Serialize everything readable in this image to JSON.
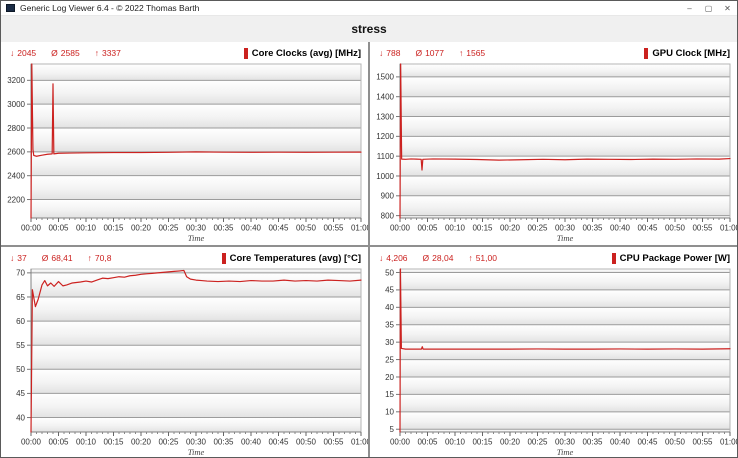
{
  "window": {
    "title": "Generic Log Viewer 6.4 - © 2022 Thomas Barth",
    "controls": {
      "minimize": "–",
      "maximize": "▢",
      "close": "✕"
    }
  },
  "header": {
    "title": "stress"
  },
  "stats_symbols": {
    "min": "↓",
    "avg": "Ø",
    "max": "↑"
  },
  "colors": {
    "accent_red": "#cb211f",
    "line_red": "#cc2220",
    "grid_line": "#9b9b9b",
    "band_top": "#ffffff",
    "band_bottom": "#e2e2e2",
    "axis_text": "#333333",
    "plot_border": "#b5b5b5"
  },
  "chart_data": [
    {
      "type": "line",
      "title": "Core Clocks (avg) [MHz]",
      "stats": {
        "min": "2045",
        "avg": "2585",
        "max": "3337"
      },
      "xlabel": "Time",
      "x_tick_labels": [
        "00:00",
        "00:05",
        "00:10",
        "00:15",
        "00:20",
        "00:25",
        "00:30",
        "00:35",
        "00:40",
        "00:45",
        "00:50",
        "00:55",
        "01:00"
      ],
      "xlim_minutes": [
        0,
        60
      ],
      "x_major_step": 5,
      "x_minor_step": 1,
      "y_ticks": [
        2200,
        2400,
        2600,
        2800,
        3000,
        3200
      ],
      "ylim": [
        2045,
        3337
      ],
      "series": [
        {
          "points": [
            [
              0,
              2045
            ],
            [
              0.15,
              3337
            ],
            [
              0.35,
              2620
            ],
            [
              0.5,
              2570
            ],
            [
              1,
              2563
            ],
            [
              2,
              2572
            ],
            [
              3,
              2580
            ],
            [
              3.85,
              2583
            ],
            [
              4,
              3170
            ],
            [
              4.15,
              2583
            ],
            [
              5,
              2588
            ],
            [
              7,
              2590
            ],
            [
              10,
              2592
            ],
            [
              15,
              2594
            ],
            [
              20,
              2594
            ],
            [
              25,
              2596
            ],
            [
              30,
              2600
            ],
            [
              35,
              2597
            ],
            [
              40,
              2596
            ],
            [
              45,
              2597
            ],
            [
              50,
              2596
            ],
            [
              55,
              2597
            ],
            [
              60,
              2598
            ]
          ]
        }
      ]
    },
    {
      "type": "line",
      "title": "GPU Clock [MHz]",
      "stats": {
        "min": "788",
        "avg": "1077",
        "max": "1565"
      },
      "xlabel": "Time",
      "x_tick_labels": [
        "00:00",
        "00:05",
        "00:10",
        "00:15",
        "00:20",
        "00:25",
        "00:30",
        "00:35",
        "00:40",
        "00:45",
        "00:50",
        "00:55",
        "01:00"
      ],
      "xlim_minutes": [
        0,
        60
      ],
      "x_major_step": 5,
      "x_minor_step": 1,
      "y_ticks": [
        800,
        900,
        1000,
        1100,
        1200,
        1300,
        1400,
        1500
      ],
      "ylim": [
        788,
        1565
      ],
      "series": [
        {
          "points": [
            [
              0,
              788
            ],
            [
              0.12,
              1565
            ],
            [
              0.3,
              1085
            ],
            [
              1,
              1084
            ],
            [
              2,
              1086
            ],
            [
              3,
              1085
            ],
            [
              3.85,
              1084
            ],
            [
              4,
              1030
            ],
            [
              4.15,
              1084
            ],
            [
              6,
              1086
            ],
            [
              10,
              1085
            ],
            [
              14,
              1083
            ],
            [
              18,
              1080
            ],
            [
              22,
              1082
            ],
            [
              26,
              1084
            ],
            [
              30,
              1082
            ],
            [
              34,
              1085
            ],
            [
              38,
              1084
            ],
            [
              42,
              1083
            ],
            [
              46,
              1085
            ],
            [
              50,
              1084
            ],
            [
              54,
              1086
            ],
            [
              58,
              1085
            ],
            [
              60,
              1088
            ]
          ]
        }
      ]
    },
    {
      "type": "line",
      "title": "Core Temperatures (avg) [°C]",
      "stats": {
        "min": "37",
        "avg": "68,41",
        "max": "70,8"
      },
      "xlabel": "Time",
      "x_tick_labels": [
        "00:00",
        "00:05",
        "00:10",
        "00:15",
        "00:20",
        "00:25",
        "00:30",
        "00:35",
        "00:40",
        "00:45",
        "00:50",
        "00:55",
        "01:00"
      ],
      "xlim_minutes": [
        0,
        60
      ],
      "x_major_step": 5,
      "x_minor_step": 1,
      "y_ticks": [
        40,
        45,
        50,
        55,
        60,
        65,
        70
      ],
      "ylim": [
        37,
        70.8
      ],
      "series": [
        {
          "points": [
            [
              0,
              37
            ],
            [
              0.25,
              66.5
            ],
            [
              0.8,
              63
            ],
            [
              1.3,
              64.5
            ],
            [
              2,
              67.5
            ],
            [
              2.5,
              68.4
            ],
            [
              3,
              67.3
            ],
            [
              3.6,
              67.9
            ],
            [
              4.2,
              67.2
            ],
            [
              5,
              68.2
            ],
            [
              5.8,
              67.3
            ],
            [
              6.5,
              67.5
            ],
            [
              7.5,
              67.9
            ],
            [
              9,
              68.1
            ],
            [
              10,
              68.3
            ],
            [
              11,
              68.1
            ],
            [
              12,
              68.5
            ],
            [
              13,
              68.9
            ],
            [
              14,
              68.8
            ],
            [
              15,
              69.0
            ],
            [
              16,
              69.2
            ],
            [
              17,
              69.1
            ],
            [
              18,
              69.4
            ],
            [
              19,
              69.5
            ],
            [
              20,
              69.7
            ],
            [
              21,
              69.8
            ],
            [
              22,
              69.9
            ],
            [
              23,
              70.0
            ],
            [
              24,
              70.1
            ],
            [
              25,
              70.2
            ],
            [
              26,
              70.3
            ],
            [
              27,
              70.4
            ],
            [
              27.8,
              70.5
            ],
            [
              28.3,
              69.2
            ],
            [
              29,
              68.7
            ],
            [
              30,
              68.5
            ],
            [
              31,
              68.4
            ],
            [
              32,
              68.3
            ],
            [
              34,
              68.2
            ],
            [
              36,
              68.3
            ],
            [
              38,
              68.2
            ],
            [
              40,
              68.4
            ],
            [
              42,
              68.3
            ],
            [
              44,
              68.3
            ],
            [
              46,
              68.5
            ],
            [
              48,
              68.3
            ],
            [
              50,
              68.4
            ],
            [
              52,
              68.3
            ],
            [
              54,
              68.5
            ],
            [
              56,
              68.4
            ],
            [
              58,
              68.3
            ],
            [
              60,
              68.5
            ]
          ]
        }
      ]
    },
    {
      "type": "line",
      "title": "CPU Package Power [W]",
      "stats": {
        "min": "4,206",
        "avg": "28,04",
        "max": "51,00"
      },
      "xlabel": "Time",
      "x_tick_labels": [
        "00:00",
        "00:05",
        "00:10",
        "00:15",
        "00:20",
        "00:25",
        "00:30",
        "00:35",
        "00:40",
        "00:45",
        "00:50",
        "00:55",
        "01:00"
      ],
      "xlim_minutes": [
        0,
        60
      ],
      "x_major_step": 5,
      "x_minor_step": 1,
      "y_ticks": [
        5,
        10,
        15,
        20,
        25,
        30,
        35,
        40,
        45,
        50
      ],
      "ylim": [
        4.206,
        51.0
      ],
      "series": [
        {
          "points": [
            [
              0,
              4.206
            ],
            [
              0.08,
              51
            ],
            [
              0.25,
              28.2
            ],
            [
              1,
              28.0
            ],
            [
              2,
              28.0
            ],
            [
              3,
              28.0
            ],
            [
              3.9,
              28.0
            ],
            [
              4.05,
              28.7
            ],
            [
              4.2,
              28.0
            ],
            [
              8,
              28.0
            ],
            [
              12,
              28.0
            ],
            [
              16,
              28.0
            ],
            [
              20,
              28.0
            ],
            [
              25,
              28.05
            ],
            [
              30,
              28.0
            ],
            [
              35,
              28.0
            ],
            [
              40,
              28.05
            ],
            [
              45,
              28.0
            ],
            [
              50,
              28.05
            ],
            [
              55,
              28.0
            ],
            [
              60,
              28.1
            ]
          ]
        }
      ]
    }
  ]
}
